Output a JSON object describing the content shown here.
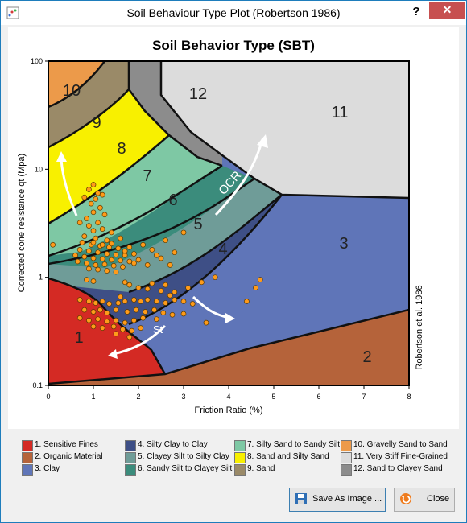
{
  "window": {
    "title": "Soil Behaviour Type Plot (Robertson 1986)",
    "help_label": "?",
    "close_label": "✕"
  },
  "chart_data": {
    "type": "scatter",
    "title": "Soil Behavior Type (SBT)",
    "xlabel": "Friction Ratio (%)",
    "ylabel": "Corrected cone resistance qt (Mpa)",
    "xlim": [
      0,
      8
    ],
    "ylim": [
      0.1,
      100
    ],
    "yscale": "log",
    "x_ticks": [
      "0",
      "1",
      "2",
      "3",
      "4",
      "5",
      "6",
      "7",
      "8"
    ],
    "y_ticks": [
      "0.1",
      "1",
      "10",
      "100"
    ],
    "side_label": "Robertson et al. 1986",
    "arrow_labels": [
      "OCR",
      "St"
    ],
    "zone_labels": [
      "1",
      "2",
      "3",
      "4",
      "5",
      "6",
      "7",
      "8",
      "9",
      "10",
      "11",
      "12"
    ],
    "series_color": "#ff9b1a",
    "points": [
      [
        0.9,
        6.5
      ],
      [
        1.0,
        7.2
      ],
      [
        1.1,
        6.0
      ],
      [
        1.05,
        5.3
      ],
      [
        0.95,
        4.8
      ],
      [
        1.15,
        4.4
      ],
      [
        1.2,
        5.8
      ],
      [
        1.0,
        4.0
      ],
      [
        0.85,
        3.5
      ],
      [
        1.1,
        3.2
      ],
      [
        1.25,
        3.8
      ],
      [
        0.9,
        3.0
      ],
      [
        1.0,
        2.7
      ],
      [
        1.2,
        2.8
      ],
      [
        1.4,
        2.6
      ],
      [
        0.8,
        2.4
      ],
      [
        1.05,
        2.3
      ],
      [
        1.3,
        2.2
      ],
      [
        1.6,
        2.3
      ],
      [
        0.75,
        2.1
      ],
      [
        0.95,
        2.0
      ],
      [
        1.15,
        1.95
      ],
      [
        1.35,
        1.9
      ],
      [
        1.55,
        1.85
      ],
      [
        1.8,
        1.9
      ],
      [
        2.1,
        2.0
      ],
      [
        0.7,
        1.8
      ],
      [
        0.9,
        1.75
      ],
      [
        1.1,
        1.7
      ],
      [
        1.3,
        1.65
      ],
      [
        1.5,
        1.62
      ],
      [
        1.7,
        1.6
      ],
      [
        1.9,
        1.65
      ],
      [
        2.3,
        1.8
      ],
      [
        2.6,
        2.2
      ],
      [
        0.8,
        1.55
      ],
      [
        1.0,
        1.5
      ],
      [
        1.2,
        1.48
      ],
      [
        1.4,
        1.45
      ],
      [
        1.6,
        1.43
      ],
      [
        1.8,
        1.4
      ],
      [
        2.0,
        1.45
      ],
      [
        0.65,
        1.4
      ],
      [
        0.85,
        1.35
      ],
      [
        1.05,
        1.3
      ],
      [
        1.25,
        1.32
      ],
      [
        1.45,
        1.28
      ],
      [
        1.65,
        1.25
      ],
      [
        0.9,
        1.2
      ],
      [
        1.1,
        1.18
      ],
      [
        1.3,
        1.15
      ],
      [
        1.5,
        1.12
      ],
      [
        2.2,
        1.3
      ],
      [
        2.5,
        1.5
      ],
      [
        2.8,
        1.7
      ],
      [
        0.1,
        2.0
      ],
      [
        0.7,
        3.2
      ],
      [
        0.8,
        5.5
      ],
      [
        1.0,
        2.1
      ],
      [
        1.2,
        2.0
      ],
      [
        1.4,
        2.05
      ],
      [
        0.6,
        1.6
      ],
      [
        1.7,
        1.75
      ],
      [
        1.9,
        1.35
      ],
      [
        2.4,
        1.6
      ],
      [
        3.0,
        2.6
      ],
      [
        2.7,
        1.3
      ],
      [
        0.85,
        0.95
      ],
      [
        1.0,
        0.92
      ],
      [
        1.7,
        0.9
      ],
      [
        1.8,
        0.85
      ],
      [
        2.0,
        0.8
      ],
      [
        2.2,
        0.78
      ],
      [
        2.5,
        0.75
      ],
      [
        2.8,
        0.73
      ],
      [
        3.1,
        0.8
      ],
      [
        3.4,
        0.9
      ],
      [
        3.7,
        1.0
      ],
      [
        2.3,
        0.88
      ],
      [
        2.6,
        0.85
      ],
      [
        0.7,
        0.62
      ],
      [
        0.9,
        0.6
      ],
      [
        1.05,
        0.58
      ],
      [
        1.2,
        0.6
      ],
      [
        1.35,
        0.57
      ],
      [
        1.55,
        0.58
      ],
      [
        1.7,
        0.6
      ],
      [
        1.9,
        0.62
      ],
      [
        2.05,
        0.6
      ],
      [
        2.2,
        0.62
      ],
      [
        2.4,
        0.6
      ],
      [
        2.6,
        0.58
      ],
      [
        2.8,
        0.62
      ],
      [
        3.0,
        0.6
      ],
      [
        3.2,
        0.57
      ],
      [
        0.8,
        0.5
      ],
      [
        1.0,
        0.48
      ],
      [
        1.15,
        0.5
      ],
      [
        1.3,
        0.47
      ],
      [
        1.5,
        0.5
      ],
      [
        1.75,
        0.48
      ],
      [
        1.95,
        0.5
      ],
      [
        2.15,
        0.48
      ],
      [
        2.35,
        0.5
      ],
      [
        2.55,
        0.47
      ],
      [
        2.75,
        0.45
      ],
      [
        3.0,
        0.46
      ],
      [
        0.7,
        0.42
      ],
      [
        0.9,
        0.4
      ],
      [
        1.1,
        0.41
      ],
      [
        1.3,
        0.39
      ],
      [
        1.5,
        0.4
      ],
      [
        1.7,
        0.38
      ],
      [
        1.9,
        0.4
      ],
      [
        2.1,
        0.42
      ],
      [
        2.4,
        0.41
      ],
      [
        1.0,
        0.35
      ],
      [
        1.2,
        0.34
      ],
      [
        1.45,
        0.35
      ],
      [
        1.65,
        0.33
      ],
      [
        1.85,
        0.32
      ],
      [
        2.05,
        0.34
      ],
      [
        1.5,
        0.3
      ],
      [
        1.8,
        0.28
      ],
      [
        3.5,
        0.38
      ],
      [
        4.4,
        0.6
      ],
      [
        4.6,
        0.8
      ],
      [
        4.7,
        0.95
      ],
      [
        1.6,
        0.66
      ],
      [
        2.7,
        0.68
      ]
    ]
  },
  "legend": [
    {
      "label": "1. Sensitive Fines",
      "color": "#d42a24"
    },
    {
      "label": "2. Organic Material",
      "color": "#b5633a"
    },
    {
      "label": "3. Clay",
      "color": "#5f75b8"
    },
    {
      "label": "4. Silty Clay to Clay",
      "color": "#3e4f86"
    },
    {
      "label": "5. Clayey Silt to Silty Clay",
      "color": "#6f9c98"
    },
    {
      "label": "6. Sandy Silt to Clayey Silt",
      "color": "#3b8c7c"
    },
    {
      "label": "7. Silty Sand to Sandy Silt",
      "color": "#7ec8a4"
    },
    {
      "label": "8. Sand and Silty Sand",
      "color": "#f8f000"
    },
    {
      "label": "9. Sand",
      "color": "#9a8a68"
    },
    {
      "label": "10. Gravelly Sand to Sand",
      "color": "#ec9a4a"
    },
    {
      "label": "11. Very Stiff Fine-Grained",
      "color": "#dcdcdc"
    },
    {
      "label": "12. Sand to Clayey Sand",
      "color": "#8c8c8c"
    }
  ],
  "buttons": {
    "save_label": "Save As Image ...",
    "close_label": "Close"
  }
}
